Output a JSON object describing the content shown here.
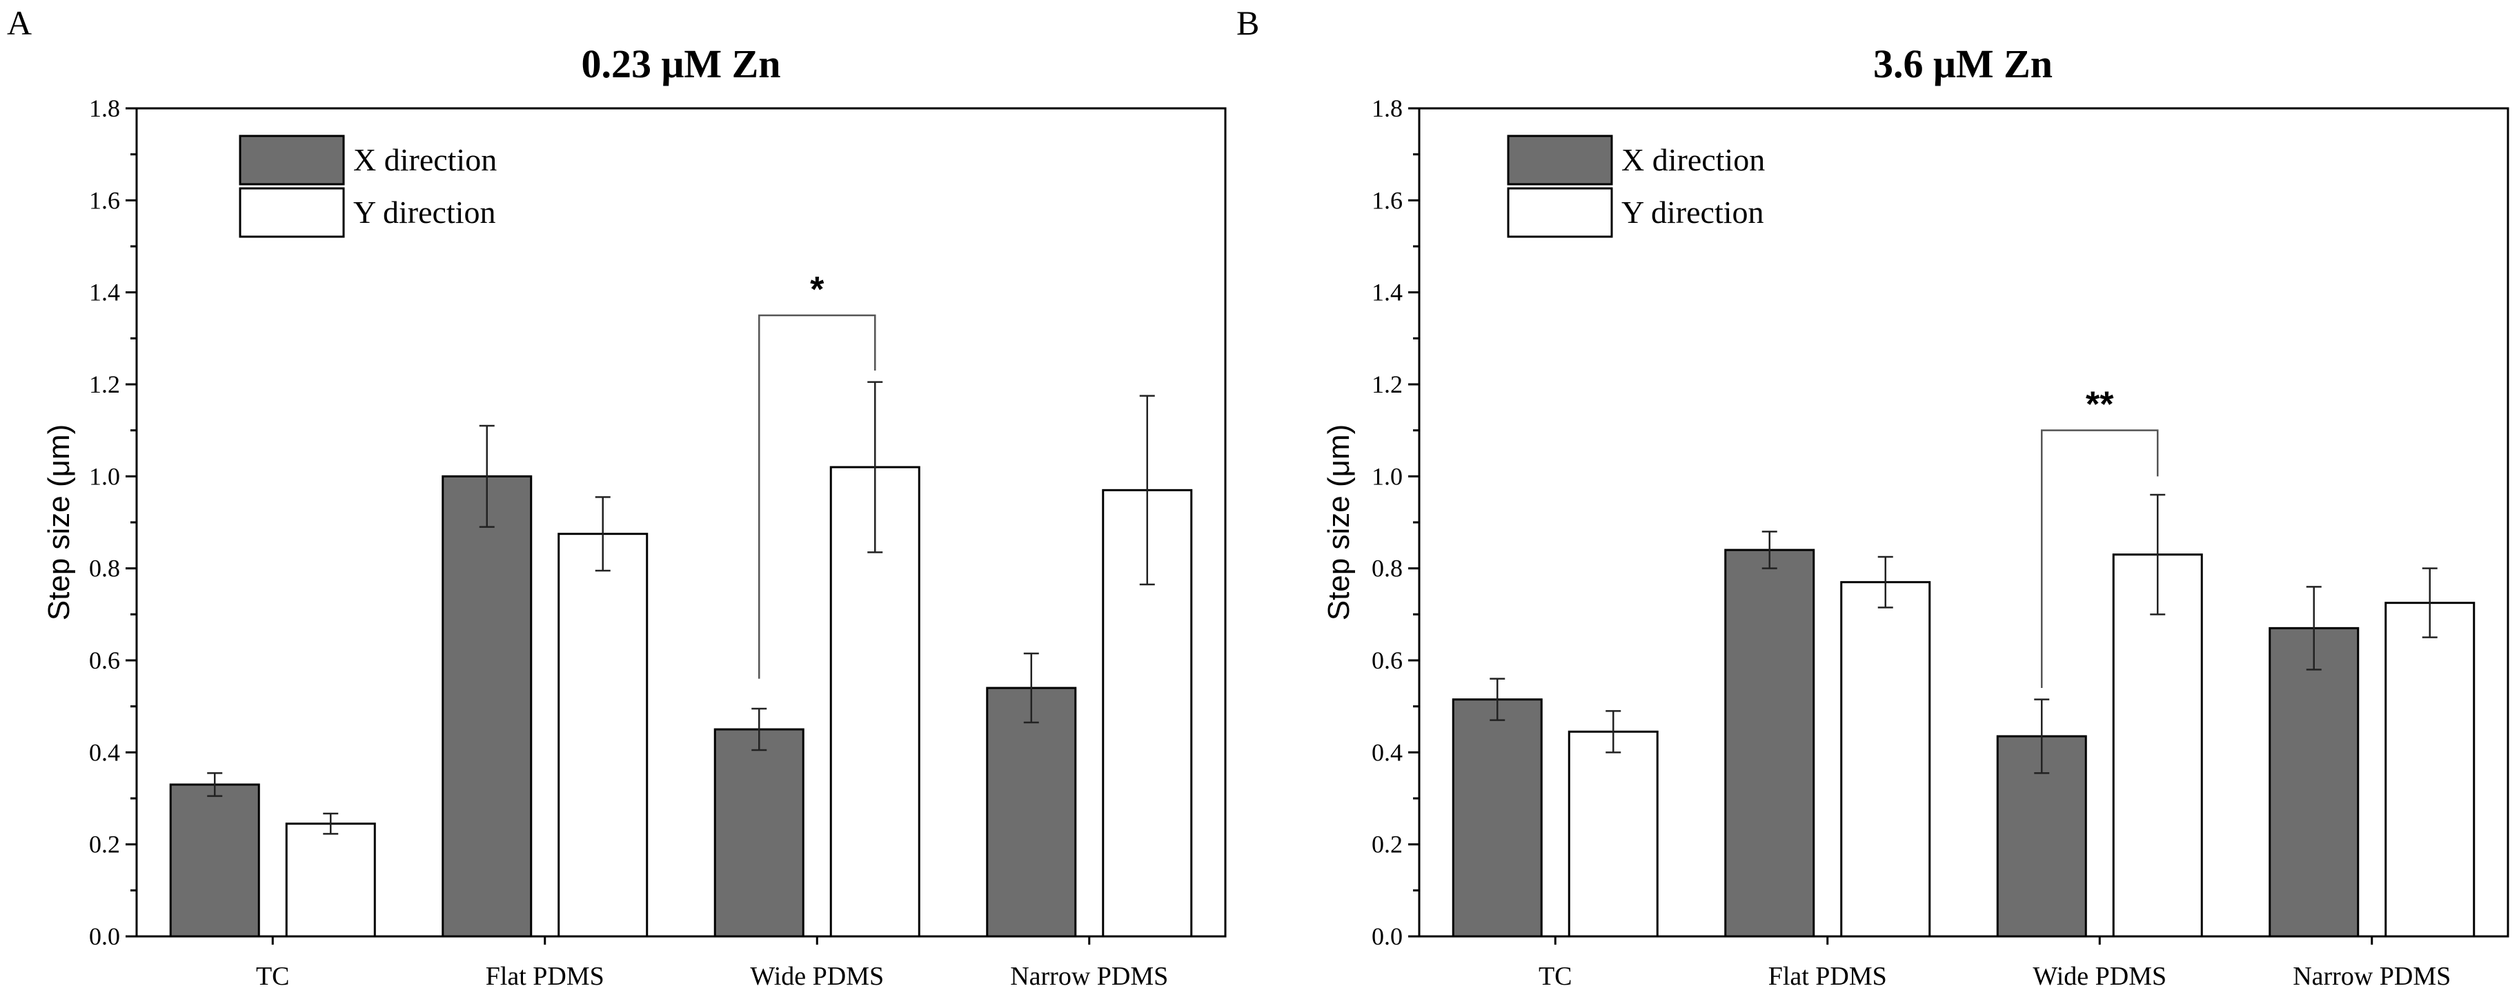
{
  "series_colors": {
    "X direction": "#6e6e6e",
    "Y direction": "#ffffff"
  },
  "chart_data": [
    {
      "type": "bar",
      "panel_label": "A",
      "title": "0.23 μM Zn",
      "xlabel": "",
      "ylabel": "Step size (μm)",
      "ylim": [
        0,
        1.8
      ],
      "yticks": [
        "0.0",
        "0.2",
        "0.4",
        "0.6",
        "0.8",
        "1.0",
        "1.2",
        "1.4",
        "1.6",
        "1.8"
      ],
      "categories": [
        "TC",
        "Flat PDMS",
        "Wide PDMS",
        "Narrow PDMS"
      ],
      "legend": [
        "X direction",
        "Y direction"
      ],
      "legend_position": "top-left",
      "series": [
        {
          "name": "X direction",
          "values": [
            0.33,
            1.0,
            0.45,
            0.54
          ],
          "errors": [
            0.025,
            0.11,
            0.045,
            0.075
          ]
        },
        {
          "name": "Y direction",
          "values": [
            0.245,
            0.875,
            1.02,
            0.97
          ],
          "errors": [
            0.022,
            0.08,
            0.185,
            0.205
          ]
        }
      ],
      "significance": [
        {
          "category": "Wide PDMS",
          "label": "*",
          "bracket_y": 1.35,
          "left_drop_to": 0.56,
          "right_drop_to": 1.23
        }
      ]
    },
    {
      "type": "bar",
      "panel_label": "B",
      "title": "3.6 μM Zn",
      "xlabel": "",
      "ylabel": "Step size (μm)",
      "ylim": [
        0,
        1.8
      ],
      "yticks": [
        "0.0",
        "0.2",
        "0.4",
        "0.6",
        "0.8",
        "1.0",
        "1.2",
        "1.4",
        "1.6",
        "1.8"
      ],
      "categories": [
        "TC",
        "Flat PDMS",
        "Wide PDMS",
        "Narrow PDMS"
      ],
      "legend": [
        "X direction",
        "Y direction"
      ],
      "legend_position": "top-left",
      "series": [
        {
          "name": "X direction",
          "values": [
            0.515,
            0.84,
            0.435,
            0.67
          ],
          "errors": [
            0.045,
            0.04,
            0.08,
            0.09
          ]
        },
        {
          "name": "Y direction",
          "values": [
            0.445,
            0.77,
            0.83,
            0.725
          ],
          "errors": [
            0.045,
            0.055,
            0.13,
            0.075
          ]
        }
      ],
      "significance": [
        {
          "category": "Wide PDMS",
          "label": "**",
          "bracket_y": 1.1,
          "left_drop_to": 0.54,
          "right_drop_to": 1.0
        }
      ]
    }
  ]
}
